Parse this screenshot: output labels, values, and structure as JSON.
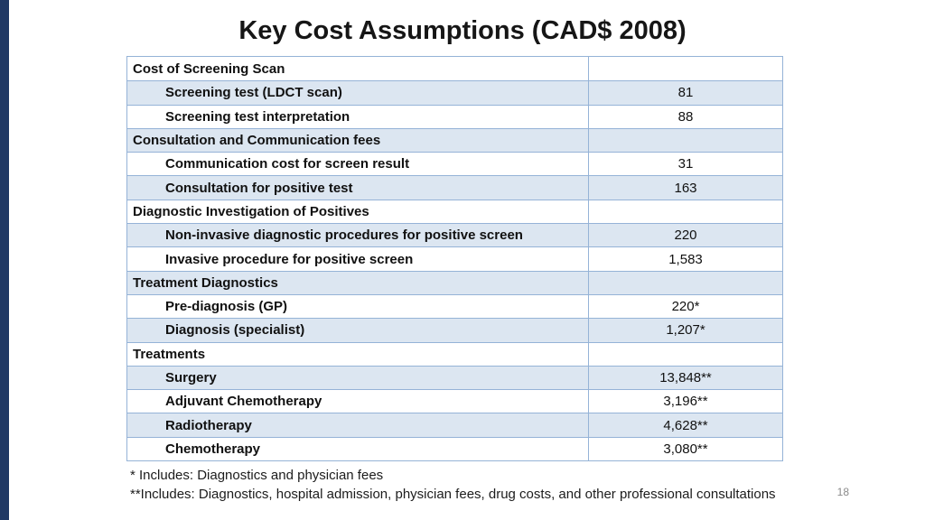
{
  "title": "Key Cost Assumptions (CAD$ 2008)",
  "table": {
    "rows": [
      {
        "label": "Cost of Screening Scan",
        "value": "",
        "type": "category"
      },
      {
        "label": "Screening test (LDCT scan)",
        "value": "81",
        "type": "item"
      },
      {
        "label": "Screening test interpretation",
        "value": "88",
        "type": "item"
      },
      {
        "label": "Consultation and Communication fees",
        "value": "",
        "type": "category"
      },
      {
        "label": "Communication cost for screen result",
        "value": "31",
        "type": "item"
      },
      {
        "label": "Consultation for positive test",
        "value": "163",
        "type": "item"
      },
      {
        "label": "Diagnostic Investigation of Positives",
        "value": "",
        "type": "category"
      },
      {
        "label": "Non-invasive diagnostic procedures for positive screen",
        "value": "220",
        "type": "item"
      },
      {
        "label": "Invasive procedure for positive screen",
        "value": "1,583",
        "type": "item"
      },
      {
        "label": "Treatment Diagnostics",
        "value": "",
        "type": "category"
      },
      {
        "label": "Pre-diagnosis (GP)",
        "value": "220*",
        "type": "item"
      },
      {
        "label": "Diagnosis (specialist)",
        "value": "1,207*",
        "type": "item"
      },
      {
        "label": "Treatments",
        "value": "",
        "type": "category"
      },
      {
        "label": "Surgery",
        "value": "13,848**",
        "type": "item"
      },
      {
        "label": "Adjuvant Chemotherapy",
        "value": "3,196**",
        "type": "item"
      },
      {
        "label": "Radiotherapy",
        "value": "4,628**",
        "type": "item"
      },
      {
        "label": "Chemotherapy",
        "value": "3,080**",
        "type": "item"
      }
    ]
  },
  "footnotes": [
    "* Includes: Diagnostics and physician fees",
    "**Includes: Diagnostics, hospital admission, physician fees, drug costs, and other professional consultations"
  ],
  "page_number": "18",
  "colors": {
    "row_shade": "#dce6f1",
    "table_border": "#95b3d7",
    "accent_bar": "#1f3864"
  }
}
